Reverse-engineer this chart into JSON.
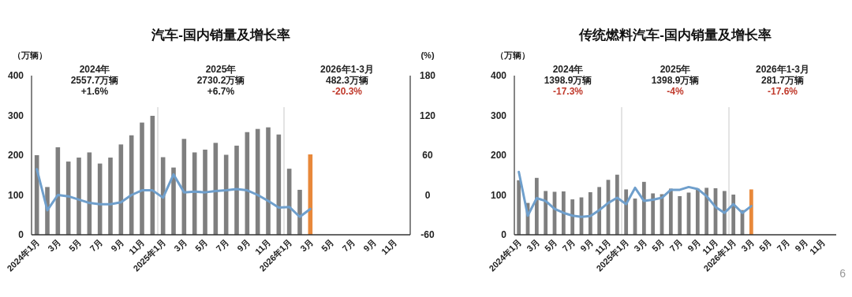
{
  "chart_data": [
    {
      "type": "bar",
      "title": "汽车-国内销量及增长率",
      "ylabel": "（万辆）",
      "y2label": "(%)",
      "categories": [
        "2024年1月",
        null,
        "3月",
        null,
        "5月",
        null,
        "7月",
        null,
        "9月",
        null,
        "11月",
        null,
        "2025年1月",
        null,
        "3月",
        null,
        "5月",
        null,
        "7月",
        null,
        "9月",
        null,
        "11月",
        null,
        "2026年1月",
        null,
        "3月",
        null,
        "5月",
        null,
        "7月",
        null,
        "9月",
        null,
        "11月",
        null
      ],
      "series": [
        {
          "colors": [
            "#7f7f7f",
            "#7f7f7f",
            "#7f7f7f",
            "#7f7f7f",
            "#7f7f7f",
            "#7f7f7f",
            "#7f7f7f",
            "#7f7f7f",
            "#7f7f7f",
            "#7f7f7f",
            "#7f7f7f",
            "#7f7f7f",
            "#7f7f7f",
            "#7f7f7f",
            "#7f7f7f",
            "#7f7f7f",
            "#7f7f7f",
            "#7f7f7f",
            "#7f7f7f",
            "#7f7f7f",
            "#7f7f7f",
            "#7f7f7f",
            "#7f7f7f",
            "#7f7f7f",
            "#7f7f7f",
            "#7f7f7f",
            "#e8883a",
            "#7f7f7f",
            "#7f7f7f",
            "#7f7f7f",
            "#7f7f7f",
            "#7f7f7f",
            "#7f7f7f",
            "#7f7f7f",
            "#7f7f7f",
            "#7f7f7f"
          ],
          "values": [
            200,
            120,
            220,
            184,
            194,
            207,
            179,
            194,
            227,
            250,
            282,
            299,
            195,
            169,
            241,
            207,
            214,
            231,
            201,
            224,
            258,
            266,
            270,
            252,
            166,
            113,
            202,
            null,
            null,
            null,
            null,
            null,
            null,
            null,
            null,
            null
          ]
        },
        {
          "type": "line",
          "axis": "y2",
          "color": "#6f9fcc",
          "values": [
            39,
            -23,
            0,
            -2,
            -7,
            -12,
            -14,
            -14,
            -11,
            0,
            7,
            7,
            -4,
            31,
            4,
            5,
            4,
            6,
            7,
            9,
            7,
            0,
            -9,
            -19,
            -18,
            -33,
            -21,
            null,
            null,
            null,
            null,
            null,
            null,
            null,
            null,
            null
          ]
        }
      ],
      "ylim": [
        0,
        400
      ],
      "yticks": [
        0,
        100,
        200,
        300,
        400
      ],
      "y2lim": [
        -60,
        180
      ],
      "y2ticks": [
        -60,
        0,
        60,
        120,
        180
      ],
      "annotations": [
        "2024年",
        "2557.7万辆",
        "+1.6%",
        "2025年",
        "2730.2万辆",
        "+6.7%",
        "2026年1-3月",
        "482.3万辆",
        "-20.3%"
      ]
    },
    {
      "type": "bar",
      "title": "传统燃料汽车-国内销量及增长率",
      "ylabel": "（万辆）",
      "categories": [
        "2024年1月",
        null,
        "3月",
        null,
        "5月",
        null,
        "7月",
        null,
        "9月",
        null,
        "11月",
        null,
        "2025年1月",
        null,
        "3月",
        null,
        "5月",
        null,
        "7月",
        null,
        "9月",
        null,
        "11月",
        null,
        "2026年1月",
        null,
        "3月",
        null,
        "5月",
        null,
        "7月",
        null,
        "9月",
        null,
        "11月",
        null
      ],
      "series": [
        {
          "colors": [
            "#7f7f7f",
            "#7f7f7f",
            "#7f7f7f",
            "#7f7f7f",
            "#7f7f7f",
            "#7f7f7f",
            "#7f7f7f",
            "#7f7f7f",
            "#7f7f7f",
            "#7f7f7f",
            "#7f7f7f",
            "#7f7f7f",
            "#7f7f7f",
            "#7f7f7f",
            "#7f7f7f",
            "#7f7f7f",
            "#7f7f7f",
            "#7f7f7f",
            "#7f7f7f",
            "#7f7f7f",
            "#7f7f7f",
            "#7f7f7f",
            "#7f7f7f",
            "#7f7f7f",
            "#7f7f7f",
            "#7f7f7f",
            "#e8883a",
            "#7f7f7f",
            "#7f7f7f",
            "#7f7f7f",
            "#7f7f7f",
            "#7f7f7f",
            "#7f7f7f",
            "#7f7f7f",
            "#7f7f7f",
            "#7f7f7f"
          ],
          "values": [
            137,
            80,
            143,
            110,
            108,
            109,
            89,
            94,
            107,
            120,
            138,
            151,
            114,
            91,
            133,
            104,
            102,
            116,
            97,
            106,
            116,
            118,
            117,
            110,
            101,
            62,
            114,
            null,
            null,
            null,
            null,
            null,
            null,
            null,
            null,
            null
          ]
        },
        {
          "type": "line",
          "color": "#6f9fcc",
          "values": [
            158,
            48,
            92,
            85,
            65,
            55,
            48,
            45,
            47,
            62,
            80,
            93,
            77,
            118,
            85,
            88,
            93,
            113,
            113,
            120,
            115,
            97,
            70,
            55,
            77,
            55,
            72,
            null,
            null,
            null,
            null,
            null,
            null,
            null,
            null,
            null
          ]
        }
      ],
      "ylim": [
        0,
        400
      ],
      "yticks": [
        0,
        100,
        200,
        300,
        400
      ],
      "annotations": [
        "2024年",
        "1398.9万辆",
        "-17.3%",
        "2025年",
        "1398.9万辆",
        "-4%",
        "2026年1-3月",
        "281.7万辆",
        "-17.6%",
        "6"
      ]
    }
  ]
}
